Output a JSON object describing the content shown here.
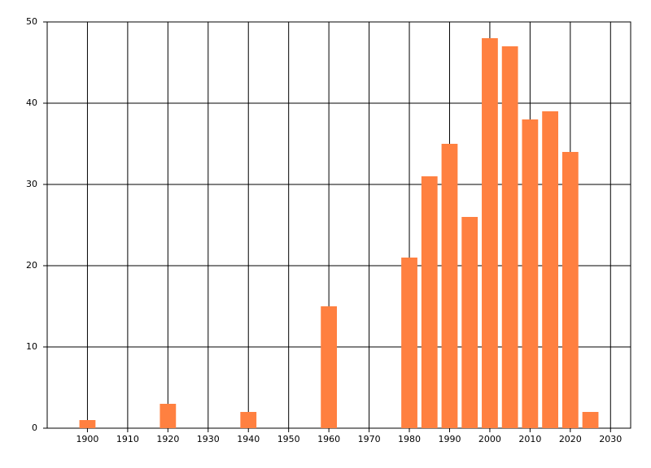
{
  "chart_data": {
    "type": "bar",
    "color": "#ff8040",
    "x": [
      1900,
      1920,
      1940,
      1960,
      1980,
      1985,
      1990,
      1995,
      2000,
      2005,
      2010,
      2015,
      2020,
      2025
    ],
    "values": [
      1,
      3,
      2,
      15,
      21,
      31,
      35,
      26,
      48,
      47,
      38,
      39,
      34,
      2
    ],
    "xlim": [
      1890,
      2035
    ],
    "xticks": [
      1900,
      1910,
      1920,
      1930,
      1940,
      1950,
      1960,
      1970,
      1980,
      1990,
      2000,
      2010,
      2020,
      2030
    ],
    "ylim": [
      0,
      50
    ],
    "yticks": [
      0,
      10,
      20,
      30,
      40,
      50
    ],
    "grid": true
  }
}
